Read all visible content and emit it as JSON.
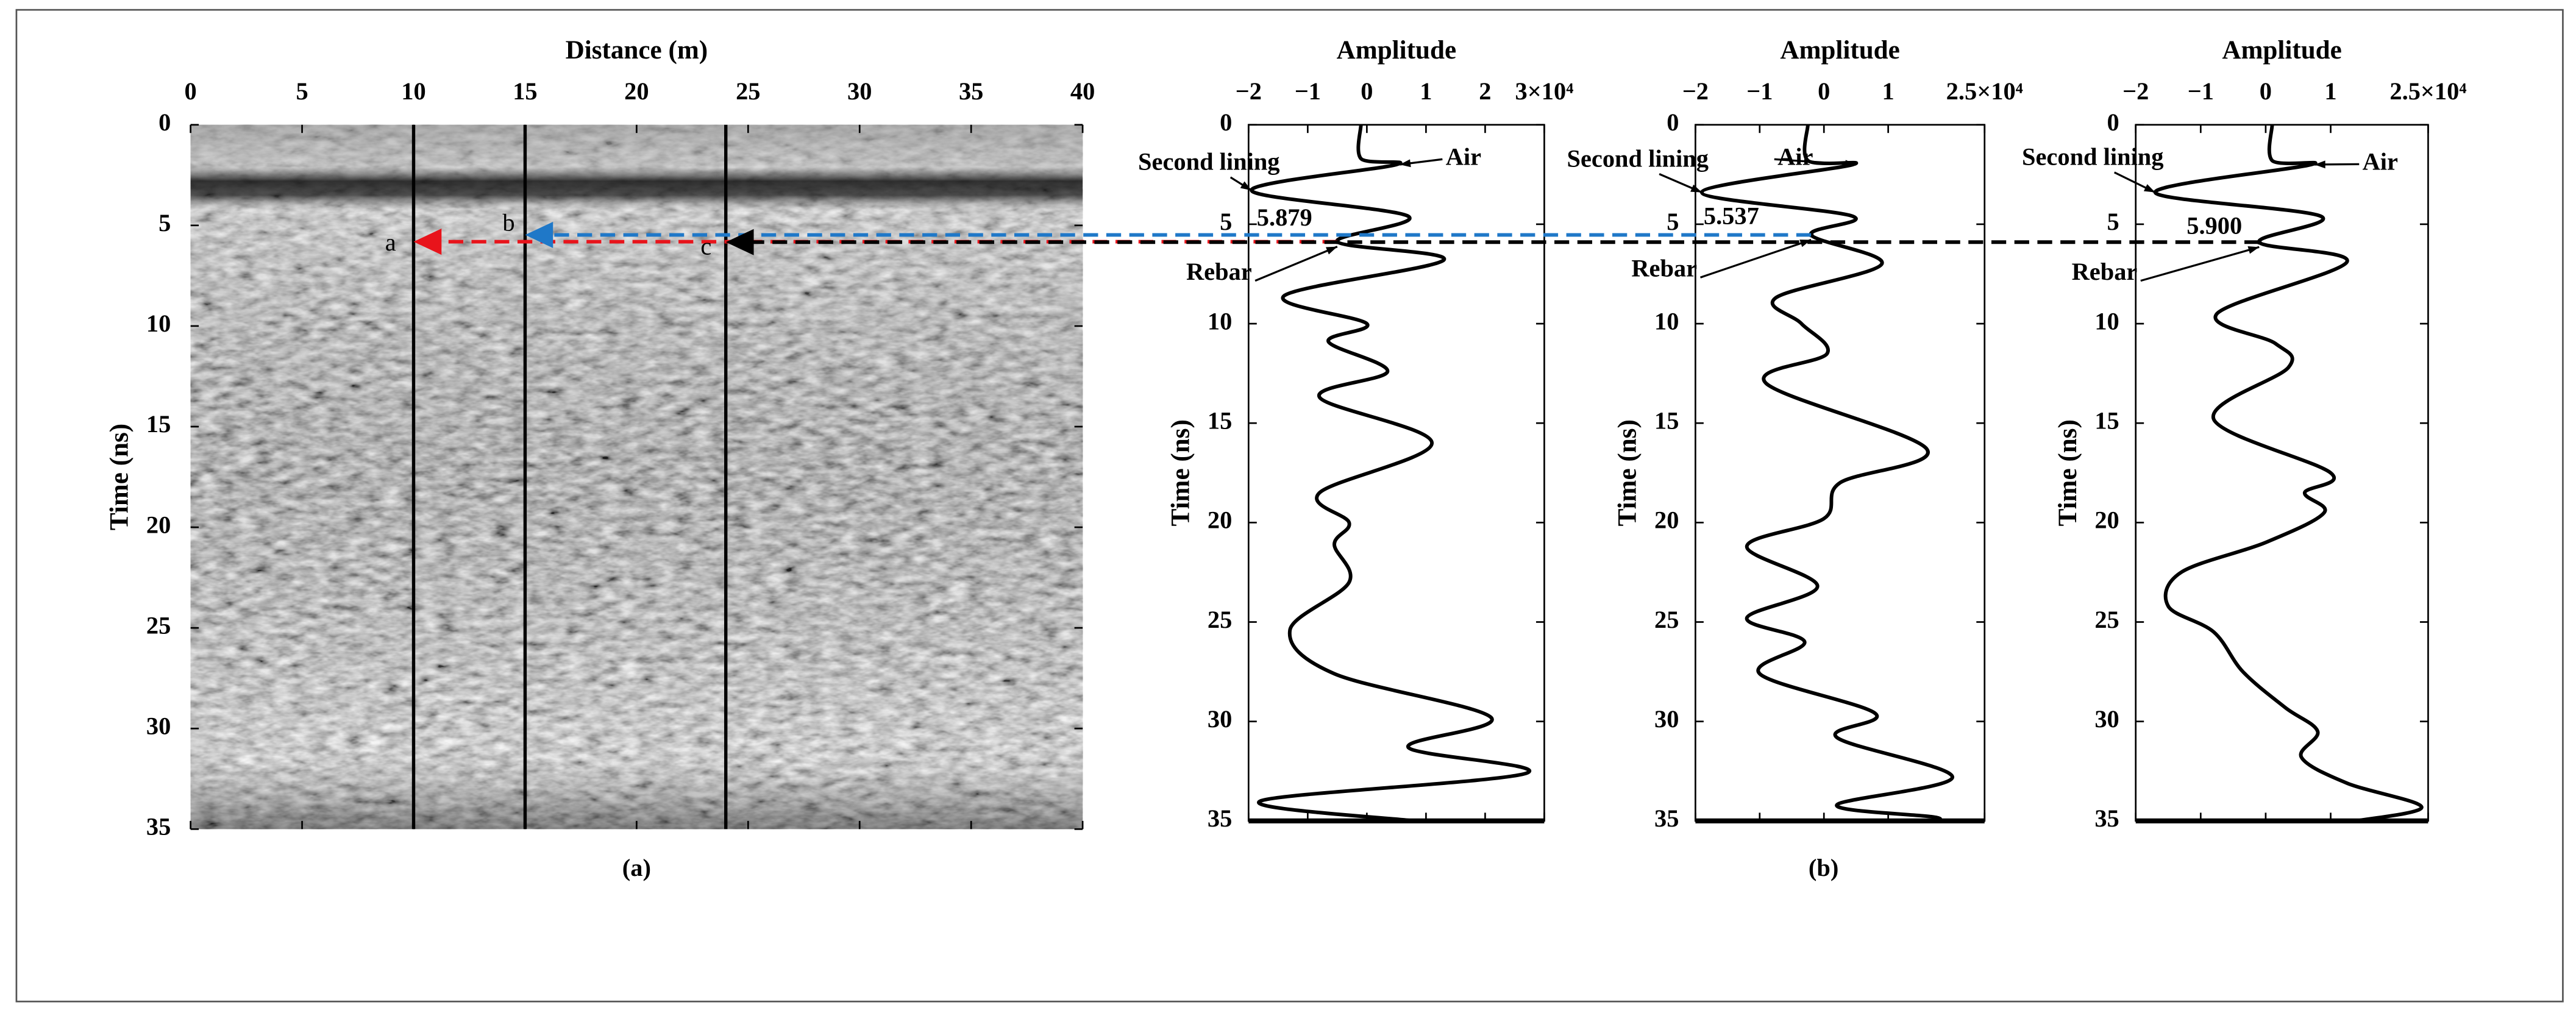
{
  "chart_data": [
    {
      "type": "heatmap",
      "xlabel": "Distance (m)",
      "ylabel": "Time (ns)",
      "xlim": [
        0,
        40
      ],
      "xticks": [
        0,
        5,
        10,
        15,
        20,
        25,
        30,
        35,
        40
      ],
      "ylim": [
        0,
        35
      ],
      "yticks": [
        0,
        5,
        10,
        15,
        20,
        25,
        30,
        35
      ],
      "y_inverted": true,
      "caption": "(a)",
      "profiles": [
        {
          "label": "a",
          "distance": 10,
          "color": "#e8141b"
        },
        {
          "label": "b",
          "distance": 15,
          "color": "#1f78c8"
        },
        {
          "label": "c",
          "distance": 24,
          "color": "#000000"
        }
      ]
    },
    {
      "type": "line",
      "xlabel": "Amplitude",
      "ylabel": "Time (ns)",
      "xlim": [
        -20000,
        30000
      ],
      "xticks": [
        {
          "value": -20000,
          "label": "−2"
        },
        {
          "value": -10000,
          "label": "−1"
        },
        0,
        {
          "value": 10000,
          "label": "1"
        },
        {
          "value": 20000,
          "label": "2"
        },
        {
          "value": 30000,
          "label": "3×10⁴"
        }
      ],
      "ylim": [
        0,
        35
      ],
      "yticks": [
        0,
        5,
        10,
        15,
        20,
        25,
        30,
        35
      ],
      "y_inverted": true,
      "color": "#000000",
      "time": [
        0,
        1.7,
        2,
        3.3,
        4.6,
        5.879,
        6.8,
        8.6,
        10,
        10.9,
        12.4,
        13.7,
        16,
        18.5,
        20,
        21.1,
        23,
        25.4,
        27.6,
        29.8,
        31.3,
        32.6,
        34,
        35
      ],
      "values": [
        -1000,
        -1000,
        5000,
        -19500,
        7000,
        -5000,
        13000,
        -14000,
        0,
        -6500,
        3500,
        -8000,
        11000,
        -8000,
        -3000,
        -5500,
        -3000,
        -13000,
        -5500,
        21000,
        7000,
        27000,
        -18000,
        8000
      ],
      "annotations": [
        "Second lining",
        "Air",
        "Rebar"
      ],
      "pick": {
        "value": 5.879,
        "label": "5.879"
      }
    },
    {
      "type": "line",
      "xlabel": "Amplitude",
      "ylabel": "Time (ns)",
      "xlim": [
        -20000,
        25000
      ],
      "xticks": [
        {
          "value": -20000,
          "label": "−2"
        },
        {
          "value": -10000,
          "label": "−1"
        },
        0,
        {
          "value": 10000,
          "label": "1"
        },
        {
          "value": 25000,
          "label": "2.5×10⁴"
        }
      ],
      "ylim": [
        0,
        35
      ],
      "yticks": [
        0,
        5,
        10,
        15,
        20,
        25,
        30,
        35
      ],
      "y_inverted": true,
      "color": "#000000",
      "time": [
        0,
        1.8,
        2,
        3.4,
        4.6,
        5.537,
        7,
        8.7,
        10,
        11.5,
        13,
        16.3,
        18,
        19.8,
        21.2,
        23.2,
        24.8,
        26,
        27.6,
        29.6,
        30.8,
        32.8,
        34.2,
        34.8,
        35
      ],
      "values": [
        -2500,
        -2500,
        4500,
        -19000,
        4500,
        -2000,
        9000,
        -7500,
        -3500,
        500,
        -9000,
        16000,
        2500,
        0,
        -12000,
        -1000,
        -12000,
        -3000,
        -10000,
        8000,
        2000,
        20000,
        2000,
        17000,
        17000
      ],
      "annotations": [
        "Second lining",
        "Air",
        "Rebar"
      ],
      "pick": {
        "value": 5.537,
        "label": "5.537"
      },
      "caption": "(b)"
    },
    {
      "type": "line",
      "xlabel": "Amplitude",
      "ylabel": "Time (ns)",
      "xlim": [
        -20000,
        25000
      ],
      "xticks": [
        {
          "value": -20000,
          "label": "−2"
        },
        {
          "value": -10000,
          "label": "−1"
        },
        0,
        {
          "value": 10000,
          "label": "1"
        },
        {
          "value": 25000,
          "label": "2.5×10⁴"
        }
      ],
      "ylim": [
        0,
        35
      ],
      "yticks": [
        0,
        5,
        10,
        15,
        20,
        25,
        30,
        35
      ],
      "y_inverted": true,
      "color": "#000000",
      "time": [
        0,
        1.8,
        2,
        3.4,
        4.6,
        5.9,
        6.9,
        9.5,
        11,
        12.2,
        14.8,
        17.5,
        18.5,
        19.5,
        21,
        22.5,
        24.2,
        25.5,
        27.5,
        29.3,
        30.5,
        31.8,
        33.1,
        34.3,
        35
      ],
      "values": [
        1000,
        1000,
        7000,
        -17000,
        8500,
        -1000,
        12500,
        -7500,
        1500,
        3500,
        -8000,
        10000,
        6000,
        9000,
        0,
        -13000,
        -15000,
        -8000,
        -3500,
        3000,
        8000,
        5500,
        12500,
        24000,
        14000
      ],
      "annotations": [
        "Second lining",
        "Air",
        "Rebar"
      ],
      "pick": {
        "value": 5.9,
        "label": "5.900"
      }
    }
  ]
}
